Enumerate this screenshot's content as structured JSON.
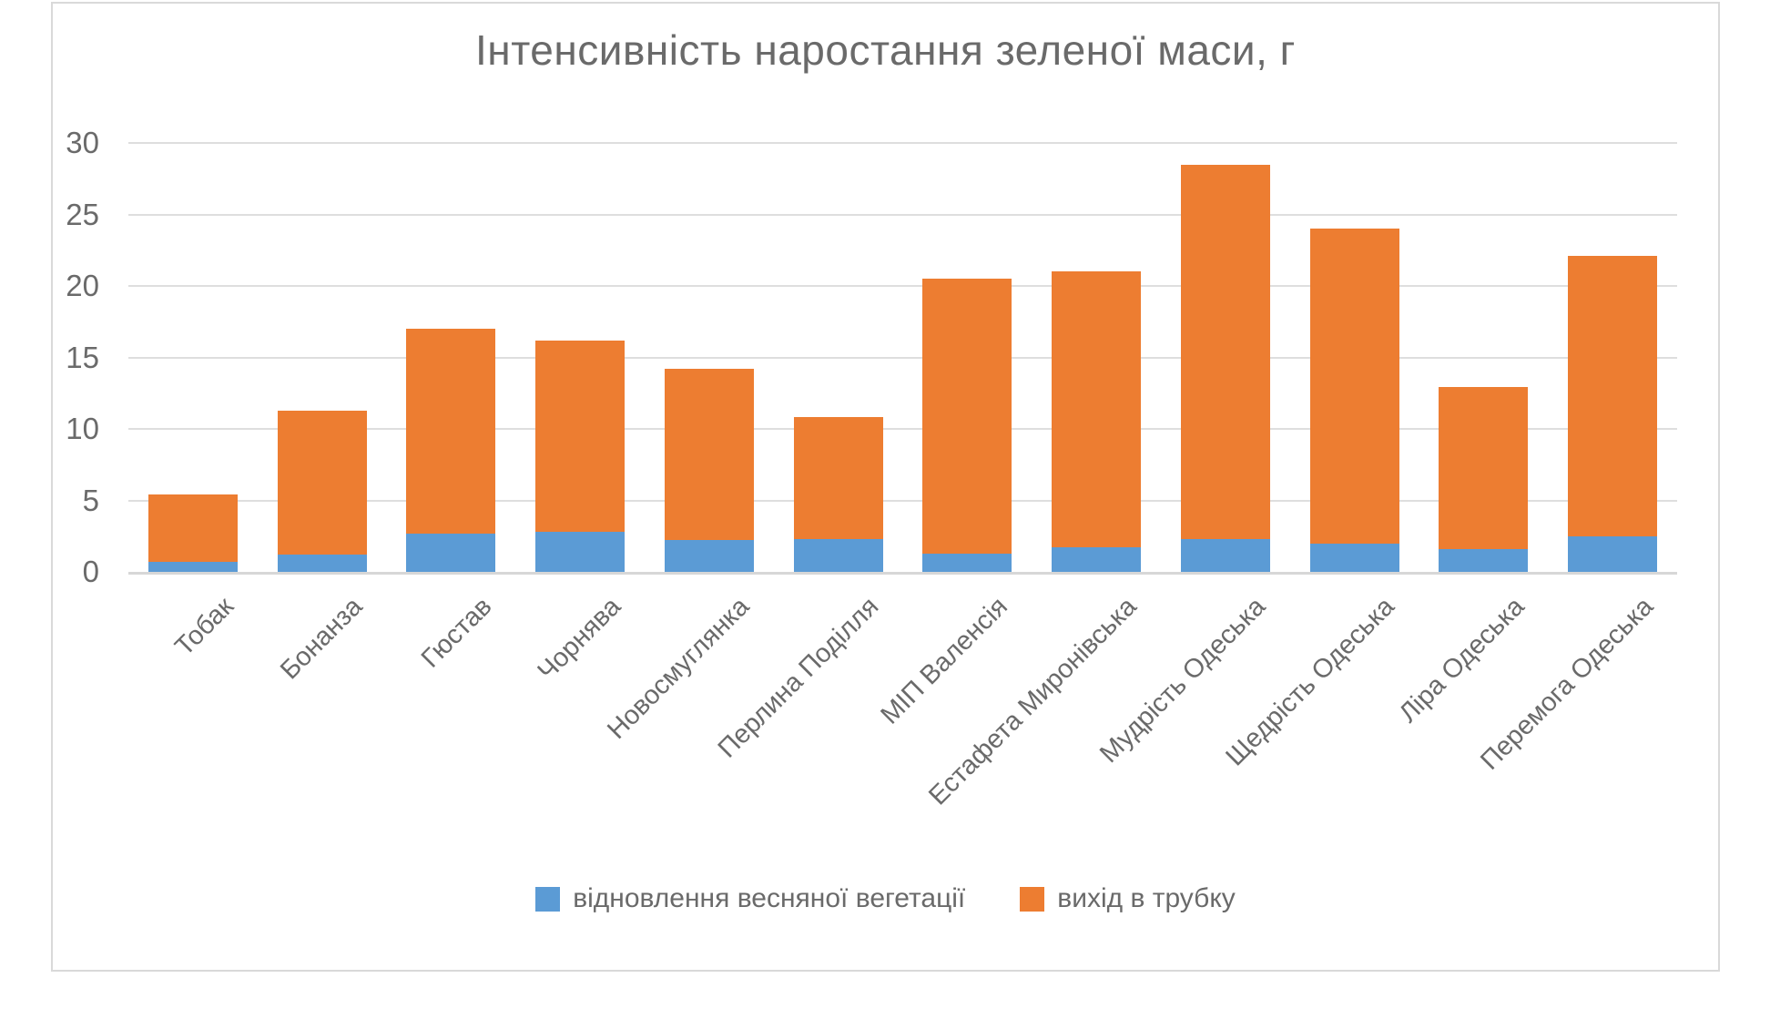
{
  "title": "Інтенсивність наростання зеленої маси, г",
  "colors": {
    "series_blue": "#5B9BD5",
    "series_orange": "#ED7D31",
    "text_gray": "#6a6a6a",
    "gridline": "#DEDEDE",
    "axis_line": "#D7D7D7",
    "frame_border": "#D9D9D9",
    "background": "#FFFFFF"
  },
  "legend": {
    "items": [
      {
        "label": "відновлення весняної вегетації",
        "color": "#5B9BD5"
      },
      {
        "label": "вихід в трубку",
        "color": "#ED7D31"
      }
    ]
  },
  "y_axis": {
    "ticks": [
      0,
      5,
      10,
      15,
      20,
      25,
      30
    ]
  },
  "chart_data": {
    "type": "bar",
    "stacked": true,
    "title": "Інтенсивність наростання зеленої маси, г",
    "xlabel": "",
    "ylabel": "",
    "ylim": [
      0,
      30
    ],
    "ytick_step": 5,
    "grid": true,
    "legend_position": "bottom",
    "categories": [
      "Тобак",
      "Бонанза",
      "Гюстав",
      "Чорнява",
      "Новосмуглянка",
      "Перлина Поділля",
      "МІП Валенсія",
      "Естафета Миронівська",
      "Мудрість Одеська",
      "Щедрість Одеська",
      "Ліра Одеська",
      "Перемога Одеська"
    ],
    "series": [
      {
        "name": "відновлення весняної вегетації",
        "color": "#5B9BD5",
        "values": [
          0.7,
          1.2,
          2.7,
          2.8,
          2.2,
          2.3,
          1.3,
          1.7,
          2.3,
          2.0,
          1.6,
          2.5
        ]
      },
      {
        "name": "вихід в трубку",
        "color": "#ED7D31",
        "values": [
          4.7,
          10.1,
          14.3,
          13.4,
          12.0,
          8.5,
          19.2,
          19.3,
          26.2,
          22.0,
          11.3,
          19.6
        ]
      }
    ],
    "stack_totals": [
      5.4,
      11.3,
      17.0,
      16.2,
      14.2,
      10.8,
      20.5,
      21.0,
      28.5,
      24.0,
      12.9,
      22.1
    ]
  }
}
